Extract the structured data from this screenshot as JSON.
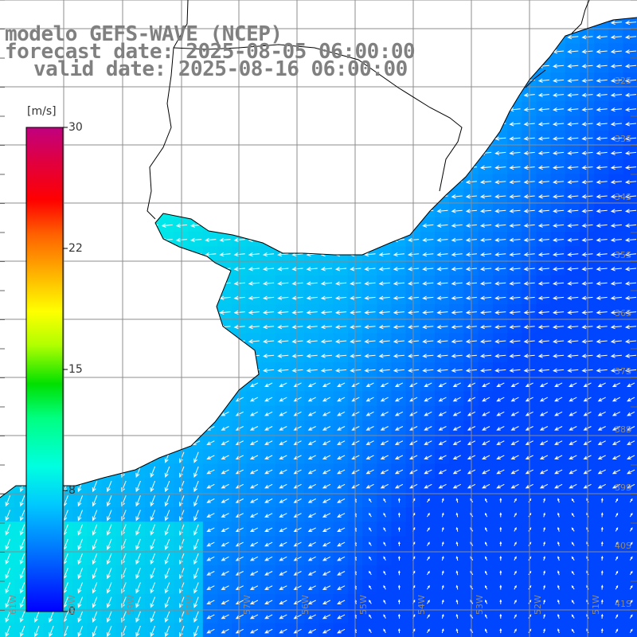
{
  "title": {
    "line1": "modelo GEFS-WAVE (NCEP)",
    "line2": "forecast date: 2025-08-05 06:00:00",
    "line3": "valid date: 2025-08-16 06:00:00"
  },
  "legend": {
    "unit": "[m/s]",
    "ticks": [
      {
        "label": "30",
        "value": 30
      },
      {
        "label": "22",
        "value": 22
      },
      {
        "label": "15",
        "value": 15
      },
      {
        "label": "8",
        "value": 8
      },
      {
        "label": "0",
        "value": 0
      }
    ],
    "colors": [
      "#0000ff",
      "#0070ff",
      "#00c8ff",
      "#00ffe0",
      "#00ff80",
      "#00e000",
      "#b0ff00",
      "#ffff00",
      "#ffb000",
      "#ff6000",
      "#ff0000",
      "#e00040",
      "#c00080"
    ]
  },
  "colors": {
    "land": "#ffffff",
    "coast": "#000000",
    "grid": "#8c8c8c",
    "arrow": "#ffffff"
  },
  "lat_labels": [
    "32S",
    "33S",
    "34S",
    "35S",
    "36S",
    "37S",
    "38S",
    "39S",
    "40S",
    "41S"
  ],
  "lon_labels": [
    "61W",
    "60W",
    "59W",
    "58W",
    "57W",
    "56W",
    "55W",
    "54W",
    "53W",
    "52W",
    "51W"
  ]
}
